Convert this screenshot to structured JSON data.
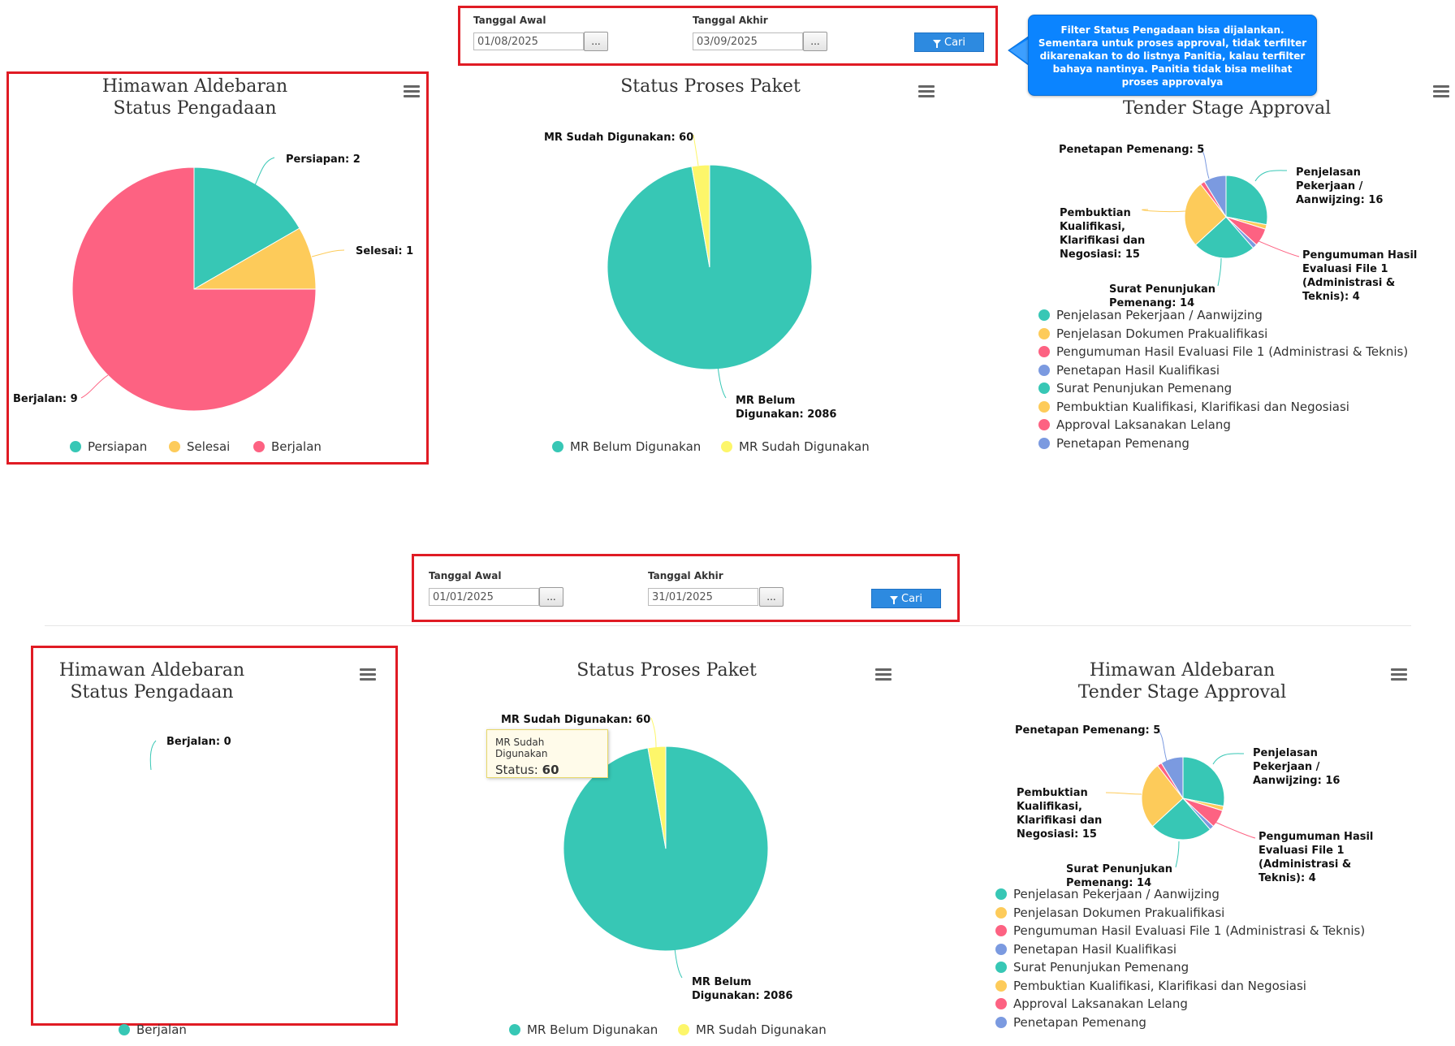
{
  "callout": {
    "text": "Filter Status Pengadaan bisa dijalankan. Sementara untuk proses approval, tidak terfilter dikarenakan to do listnya Panitia, kalau terfilter bahaya nantinya. Panitia tidak bisa melihat proses approvalya"
  },
  "colors": {
    "teal": "#37c7b5",
    "yellow": "#fdcb5a",
    "pink": "#fd6282",
    "purple": "#7b9ae0",
    "light_yellow": "#fdf66a",
    "red_border": "#e01b24",
    "button_blue": "#2d8ae0"
  },
  "panels": [
    {
      "filter": {
        "start_label": "Tanggal Awal",
        "start_value": "01/08/2025",
        "end_label": "Tanggal Akhir",
        "end_value": "03/09/2025",
        "browse_label": "...",
        "search_label": "Cari"
      },
      "status_pengadaan": {
        "title_line1": "Himawan Aldebaran",
        "title_line2": "Status Pengadaan",
        "slices": [
          {
            "name": "Persiapan",
            "value": 2,
            "label": "Persiapan: 2",
            "color": "#37c7b5"
          },
          {
            "name": "Selesai",
            "value": 1,
            "label": "Selesai: 1",
            "color": "#fdcb5a"
          },
          {
            "name": "Berjalan",
            "value": 9,
            "label": "Berjalan: 9",
            "color": "#fd6282"
          }
        ],
        "legend": [
          "Persiapan",
          "Selesai",
          "Berjalan"
        ]
      },
      "status_proses": {
        "title": "Status Proses Paket",
        "label_sudah": "MR Sudah Digunakan: 60",
        "label_belum_1": "MR Belum",
        "label_belum_2": "Digunakan: 2086",
        "legend": [
          "MR Belum Digunakan",
          "MR Sudah Digunakan"
        ]
      },
      "tender": {
        "title_line1": "",
        "title_line2": "Tender Stage Approval",
        "labels": {
          "penetapan_pemenang": "Penetapan Pemenang: 5",
          "penjelasan": [
            "Penjelasan",
            "Pekerjaan /",
            "Aanwijzing: 16"
          ],
          "pembuktian": [
            "Pembuktian",
            "Kualifikasi,",
            "Klarifikasi dan",
            "Negosiasi: 15"
          ],
          "pengumuman": [
            "Pengumuman Hasil",
            "Evaluasi File 1",
            "(Administrasi &",
            "Teknis): 4"
          ],
          "surat": [
            "Surat Penunjukan",
            "Pemenang: 14"
          ]
        },
        "legend": [
          "Penjelasan Pekerjaan / Aanwijzing",
          "Penjelasan Dokumen Prakualifikasi",
          "Pengumuman Hasil Evaluasi File 1 (Administrasi & Teknis)",
          "Penetapan Hasil Kualifikasi",
          "Surat Penunjukan Pemenang",
          "Pembuktian Kualifikasi, Klarifikasi dan Negosiasi",
          "Approval Laksanakan Lelang",
          "Penetapan Pemenang"
        ]
      }
    },
    {
      "filter": {
        "start_label": "Tanggal Awal",
        "start_value": "01/01/2025",
        "end_label": "Tanggal Akhir",
        "end_value": "31/01/2025",
        "browse_label": "...",
        "search_label": "Cari"
      },
      "status_pengadaan": {
        "title_line1": "Himawan Aldebaran",
        "title_line2": "Status Pengadaan",
        "slices": [
          {
            "name": "Berjalan",
            "value": 0,
            "label": "Berjalan: 0",
            "color": "#37c7b5"
          }
        ],
        "legend": [
          "Berjalan"
        ]
      },
      "status_proses": {
        "title": "Status Proses Paket",
        "label_sudah": "MR Sudah Digunakan: 60",
        "label_belum_1": "MR Belum",
        "label_belum_2": "Digunakan: 2086",
        "legend": [
          "MR Belum Digunakan",
          "MR Sudah Digunakan"
        ],
        "tooltip": {
          "series": "MR Sudah Digunakan",
          "label": "Status:",
          "value": "60"
        }
      },
      "tender": {
        "title_line1": "Himawan Aldebaran",
        "title_line2": "Tender Stage Approval",
        "labels": {
          "penetapan_pemenang": "Penetapan Pemenang: 5",
          "penjelasan": [
            "Penjelasan",
            "Pekerjaan /",
            "Aanwijzing: 16"
          ],
          "pembuktian": [
            "Pembuktian",
            "Kualifikasi,",
            "Klarifikasi dan",
            "Negosiasi: 15"
          ],
          "pengumuman": [
            "Pengumuman Hasil",
            "Evaluasi File 1",
            "(Administrasi &",
            "Teknis): 4"
          ],
          "surat": [
            "Surat Penunjukan",
            "Pemenang: 14"
          ]
        },
        "legend": [
          "Penjelasan Pekerjaan / Aanwijzing",
          "Penjelasan Dokumen Prakualifikasi",
          "Pengumuman Hasil Evaluasi File 1 (Administrasi & Teknis)",
          "Penetapan Hasil Kualifikasi",
          "Surat Penunjukan Pemenang",
          "Pembuktian Kualifikasi, Klarifikasi dan Negosiasi",
          "Approval Laksanakan Lelang",
          "Penetapan Pemenang"
        ]
      }
    }
  ],
  "chart_data": [
    {
      "type": "pie",
      "title": "Himawan Aldebaran Status Pengadaan",
      "categories": [
        "Persiapan",
        "Selesai",
        "Berjalan"
      ],
      "values": [
        2,
        1,
        9
      ]
    },
    {
      "type": "pie",
      "title": "Status Proses Paket",
      "categories": [
        "MR Belum Digunakan",
        "MR Sudah Digunakan"
      ],
      "values": [
        2086,
        60
      ]
    },
    {
      "type": "pie",
      "title": "Tender Stage Approval",
      "categories": [
        "Penjelasan Pekerjaan / Aanwijzing",
        "Penjelasan Dokumen Prakualifikasi",
        "Pengumuman Hasil Evaluasi File 1 (Administrasi & Teknis)",
        "Penetapan Hasil Kualifikasi",
        "Surat Penunjukan Pemenang",
        "Pembuktian Kualifikasi, Klarifikasi dan Negosiasi",
        "Approval Laksanakan Lelang",
        "Penetapan Pemenang"
      ],
      "values": [
        16,
        1,
        4,
        1,
        14,
        15,
        1,
        5
      ]
    },
    {
      "type": "pie",
      "title": "Himawan Aldebaran Status Pengadaan",
      "categories": [
        "Berjalan"
      ],
      "values": [
        0
      ]
    },
    {
      "type": "pie",
      "title": "Status Proses Paket",
      "categories": [
        "MR Belum Digunakan",
        "MR Sudah Digunakan"
      ],
      "values": [
        2086,
        60
      ]
    },
    {
      "type": "pie",
      "title": "Himawan Aldebaran Tender Stage Approval",
      "categories": [
        "Penjelasan Pekerjaan / Aanwijzing",
        "Penjelasan Dokumen Prakualifikasi",
        "Pengumuman Hasil Evaluasi File 1 (Administrasi & Teknis)",
        "Penetapan Hasil Kualifikasi",
        "Surat Penunjukan Pemenang",
        "Pembuktian Kualifikasi, Klarifikasi dan Negosiasi",
        "Approval Laksanakan Lelang",
        "Penetapan Pemenang"
      ],
      "values": [
        16,
        1,
        4,
        1,
        14,
        15,
        1,
        5
      ]
    }
  ]
}
